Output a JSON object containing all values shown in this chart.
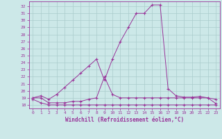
{
  "xlabel": "Windchill (Refroidissement éolien,°C)",
  "background_color": "#cce8e8",
  "line_color": "#993399",
  "grid_color": "#aacccc",
  "xlim": [
    -0.5,
    23.5
  ],
  "ylim": [
    17.5,
    32.7
  ],
  "yticks": [
    18,
    19,
    20,
    21,
    22,
    23,
    24,
    25,
    26,
    27,
    28,
    29,
    30,
    31,
    32
  ],
  "xticks": [
    0,
    1,
    2,
    3,
    4,
    5,
    6,
    7,
    8,
    9,
    10,
    11,
    12,
    13,
    14,
    15,
    16,
    17,
    18,
    19,
    20,
    21,
    22,
    23
  ],
  "series": [
    {
      "x": [
        0,
        1,
        2,
        3,
        4,
        5,
        6,
        7,
        8,
        9,
        10,
        11,
        12,
        13,
        14,
        15,
        16,
        17,
        18,
        19,
        20,
        21,
        22,
        23
      ],
      "y": [
        19.0,
        19.3,
        18.8,
        19.5,
        20.5,
        21.5,
        22.5,
        23.5,
        24.5,
        21.5,
        24.5,
        27.0,
        29.0,
        31.0,
        31.0,
        32.2,
        32.2,
        20.3,
        19.3,
        19.1,
        19.1,
        19.2,
        19.0,
        18.8
      ]
    },
    {
      "x": [
        0,
        1,
        2,
        3,
        4,
        5,
        6,
        7,
        8,
        9,
        10,
        11,
        12,
        13,
        14,
        15,
        16,
        17,
        18,
        19,
        20,
        21,
        22,
        23
      ],
      "y": [
        19.0,
        19.0,
        18.3,
        18.3,
        18.3,
        18.5,
        18.5,
        18.8,
        19.0,
        22.0,
        19.5,
        19.0,
        19.0,
        19.0,
        19.0,
        19.0,
        19.0,
        19.0,
        19.0,
        19.0,
        19.0,
        19.0,
        19.0,
        18.2
      ]
    },
    {
      "x": [
        0,
        1,
        2,
        3,
        4,
        5,
        6,
        7,
        8,
        9,
        10,
        11,
        12,
        13,
        14,
        15,
        16,
        17,
        18,
        19,
        20,
        21,
        22,
        23
      ],
      "y": [
        18.8,
        18.3,
        18.0,
        18.0,
        18.0,
        18.0,
        18.0,
        18.0,
        18.0,
        18.0,
        18.0,
        18.0,
        18.0,
        18.0,
        18.0,
        18.0,
        18.0,
        18.0,
        18.0,
        18.0,
        18.0,
        18.0,
        18.0,
        18.0
      ]
    }
  ]
}
